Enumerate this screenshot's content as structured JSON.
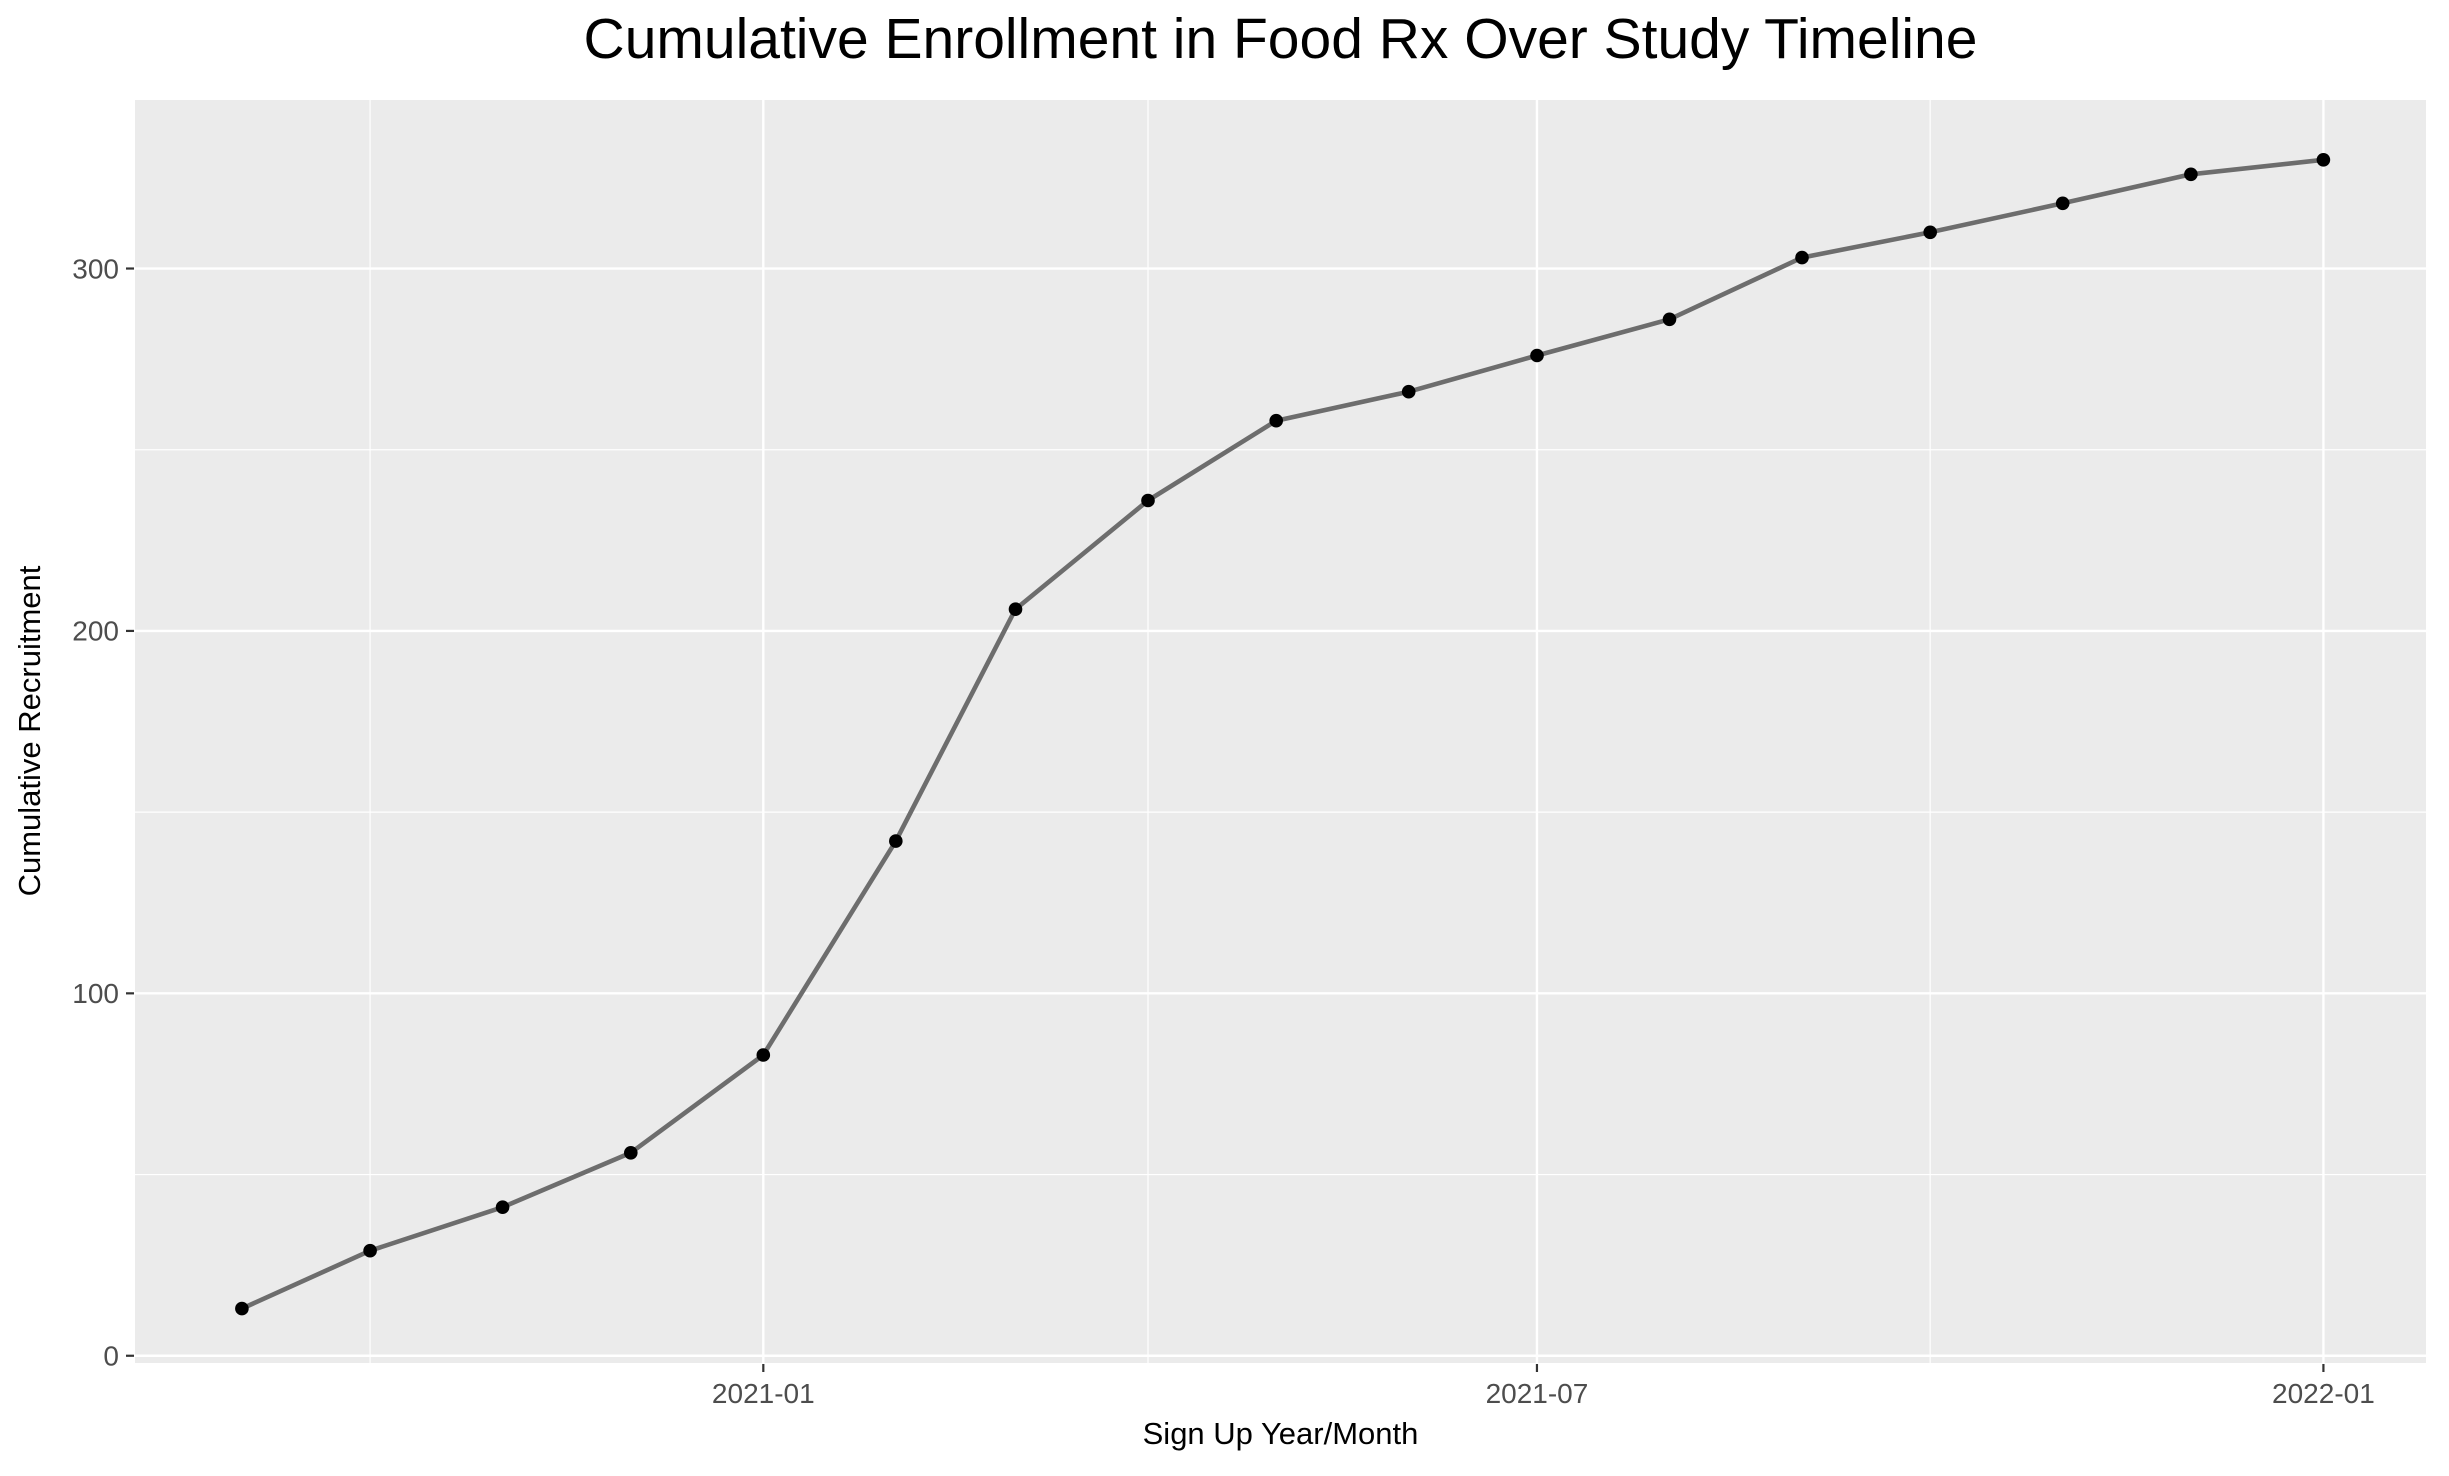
{
  "chart_data": {
    "type": "line",
    "title": "Cumulative Enrollment in Food Rx Over Study Timeline",
    "xlabel": "Sign Up Year/Month",
    "ylabel": "Cumulative Recruitment",
    "series": [
      {
        "name": "cumulative-recruitment",
        "x": [
          "2020-09-01",
          "2020-10-01",
          "2020-11-01",
          "2020-12-01",
          "2021-01-01",
          "2021-02-01",
          "2021-03-01",
          "2021-04-01",
          "2021-05-01",
          "2021-06-01",
          "2021-07-01",
          "2021-08-01",
          "2021-09-01",
          "2021-10-01",
          "2021-11-01",
          "2021-12-01",
          "2022-01-01"
        ],
        "values": [
          13,
          29,
          41,
          56,
          83,
          142,
          206,
          236,
          258,
          266,
          276,
          286,
          303,
          310,
          318,
          326,
          330
        ]
      }
    ],
    "x_ticks": [
      {
        "label": "2021-01",
        "date": "2021-01-01"
      },
      {
        "label": "2021-07",
        "date": "2021-07-01"
      },
      {
        "label": "2022-01",
        "date": "2022-01-01"
      }
    ],
    "x_minor_dates": [
      "2020-10-01",
      "2021-04-01",
      "2021-10-01"
    ],
    "y_ticks": [
      {
        "label": "0",
        "value": 0
      },
      {
        "label": "100",
        "value": 100
      },
      {
        "label": "200",
        "value": 200
      },
      {
        "label": "300",
        "value": 300
      }
    ],
    "y_minor": [
      50,
      150,
      250
    ],
    "xlim": [
      "2020-08-07",
      "2022-01-25"
    ],
    "ylim": [
      -2,
      346.5
    ],
    "grid": "white major and minor gridlines on gray panel",
    "legend": "none",
    "colors": {
      "background": "#ffffff",
      "panel_bg": "#ebebeb",
      "grid_major": "#ffffff",
      "grid_minor": "#ffffff",
      "line": "#6d6d6d",
      "point": "#000000",
      "tick_mark": "#333333",
      "tick_text": "#4d4d4d",
      "title_text": "#000000"
    }
  }
}
